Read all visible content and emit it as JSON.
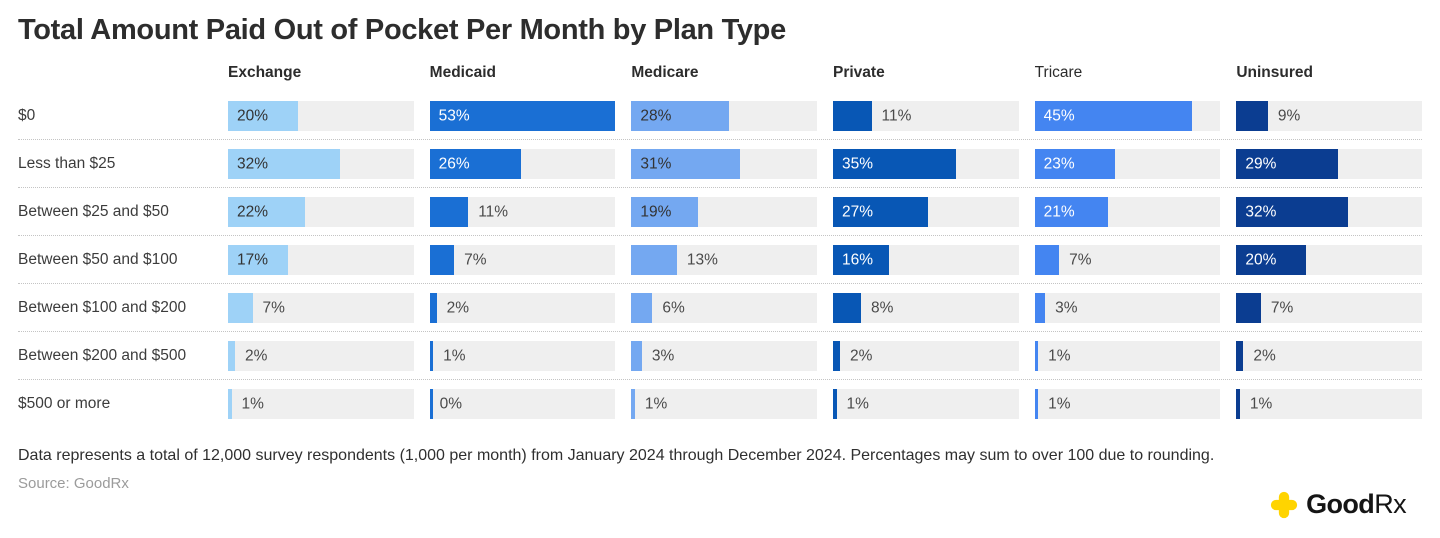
{
  "title": "Total Amount Paid Out of Pocket Per Month by Plan Type",
  "footnote": "Data represents a total of 12,000 survey respondents (1,000 per month) from January 2024 through December 2024. Percentages may sum to over 100 due to rounding.",
  "source": "Source: GoodRx",
  "logo": {
    "text_good": "Good",
    "text_rx": "Rx",
    "cross_color": "#FFD400",
    "icon": "goodrx-cross-icon"
  },
  "chart_data": {
    "type": "bar",
    "title": "Total Amount Paid Out of Pocket Per Month by Plan Type",
    "orientation": "horizontal",
    "categories": [
      "$0",
      "Less than $25",
      "Between $25 and $50",
      "Between $50 and $100",
      "Between $100 and $200",
      "Between $200 and $500",
      "$500 or more"
    ],
    "series": [
      {
        "name": "Exchange",
        "header_bold": true,
        "color": "#9ED2F7",
        "label_color": "#333333",
        "values": [
          20,
          32,
          22,
          17,
          7,
          2,
          1
        ],
        "labels": [
          "20%",
          "32%",
          "22%",
          "17%",
          "7%",
          "2%",
          "1%"
        ]
      },
      {
        "name": "Medicaid",
        "header_bold": true,
        "color": "#1A6FD4",
        "label_color": "#ffffff",
        "values": [
          53,
          26,
          11,
          7,
          2,
          1,
          0
        ],
        "labels": [
          "53%",
          "26%",
          "11%",
          "7%",
          "2%",
          "1%",
          "0%"
        ]
      },
      {
        "name": "Medicare",
        "header_bold": true,
        "color": "#74A8F1",
        "label_color": "#333333",
        "values": [
          28,
          31,
          19,
          13,
          6,
          3,
          1
        ],
        "labels": [
          "28%",
          "31%",
          "19%",
          "13%",
          "6%",
          "3%",
          "1%"
        ]
      },
      {
        "name": "Private",
        "header_bold": true,
        "color": "#0857B5",
        "label_color": "#ffffff",
        "values": [
          11,
          35,
          27,
          16,
          8,
          2,
          1
        ],
        "labels": [
          "11%",
          "35%",
          "27%",
          "16%",
          "8%",
          "2%",
          "1%"
        ]
      },
      {
        "name": "Tricare",
        "header_bold": false,
        "color": "#4485F1",
        "label_color": "#ffffff",
        "values": [
          45,
          23,
          21,
          7,
          3,
          1,
          1
        ],
        "labels": [
          "45%",
          "23%",
          "21%",
          "7%",
          "3%",
          "1%",
          "1%"
        ]
      },
      {
        "name": "Uninsured",
        "header_bold": true,
        "color": "#0B3D91",
        "label_color": "#ffffff",
        "values": [
          9,
          29,
          32,
          20,
          7,
          2,
          1
        ],
        "labels": [
          "9%",
          "29%",
          "32%",
          "20%",
          "7%",
          "2%",
          "1%"
        ]
      }
    ],
    "value_suffix": "%",
    "scale_max": 53,
    "inside_label_threshold": 16,
    "outside_label_color": "#4a4a4a",
    "track_color": "#efefef",
    "grid": "dotted-row-separators",
    "legend_position": "none",
    "xlim": [
      0,
      53
    ]
  }
}
